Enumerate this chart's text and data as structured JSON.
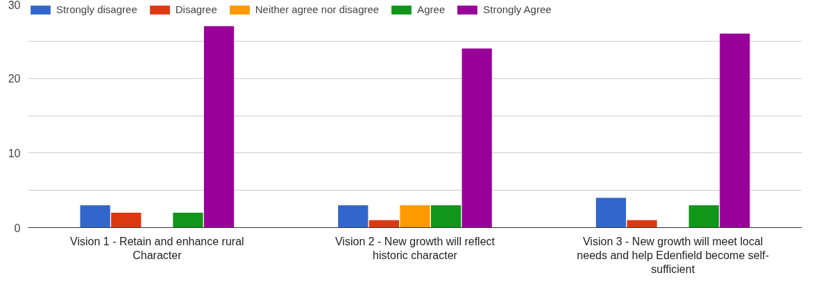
{
  "chart_data": {
    "type": "bar",
    "categories": [
      "Vision 1 - Retain and enhance rural Character",
      "Vision 2 - New growth will reflect historic character",
      "Vision 3 - New growth will meet local needs and help Edenfield become self-sufficient"
    ],
    "series": [
      {
        "name": "Strongly disagree",
        "color": "#3366cc",
        "values": [
          3,
          3,
          4
        ]
      },
      {
        "name": "Disagree",
        "color": "#dc3912",
        "values": [
          2,
          1,
          1
        ]
      },
      {
        "name": "Neither agree nor disagree",
        "color": "#ff9900",
        "values": [
          0,
          3,
          0
        ]
      },
      {
        "name": "Agree",
        "color": "#109618",
        "values": [
          2,
          3,
          3
        ]
      },
      {
        "name": "Strongly Agree",
        "color": "#990099",
        "values": [
          27,
          24,
          26
        ]
      }
    ],
    "ylim": [
      0,
      30
    ],
    "yticks": [
      0,
      {
        "value": 5,
        "label": null
      },
      10,
      {
        "value": 15,
        "label": null
      },
      20,
      {
        "value": 25,
        "label": null
      },
      30
    ],
    "grid": "y",
    "legend": "top"
  }
}
